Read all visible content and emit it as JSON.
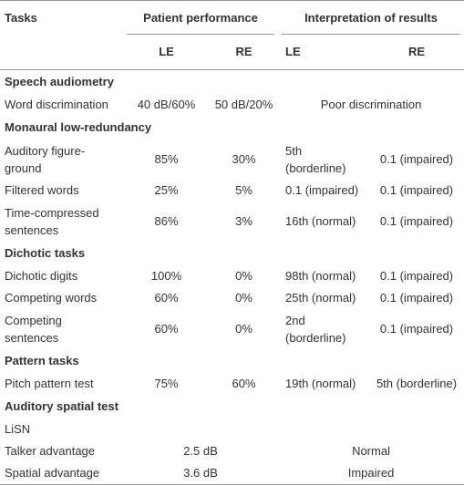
{
  "header": {
    "tasks": "Tasks",
    "patient_performance": "Patient performance",
    "interpretation": "Interpretation of results",
    "subheaders": [
      "LE",
      "RE",
      "LE",
      "RE"
    ]
  },
  "sections": [
    {
      "title": "Speech audiometry",
      "rows": [
        {
          "task": "Word discrimination",
          "patient_le": "40 dB/60%",
          "patient_re": "50 dB/20%",
          "interp": "Poor discrimination"
        }
      ]
    },
    {
      "title": "Monaural low-redundancy",
      "rows": [
        {
          "task": "Auditory figure-ground",
          "patient_le": "85%",
          "patient_re": "30%",
          "interp_le": "5th (borderline)",
          "interp_re": "0.1 (impaired)"
        },
        {
          "task": "Filtered words",
          "patient_le": "25%",
          "patient_re": "5%",
          "interp_le": "0.1 (impaired)",
          "interp_re": "0.1 (impaired)"
        },
        {
          "task": "Time-compressed sentences",
          "patient_le": "86%",
          "patient_re": "3%",
          "interp_le": "16th (normal)",
          "interp_re": "0.1 (impaired)"
        }
      ]
    },
    {
      "title": "Dichotic tasks",
      "rows": [
        {
          "task": "Dichotic digits",
          "patient_le": "100%",
          "patient_re": "0%",
          "interp_le": "98th (normal)",
          "interp_re": "0.1 (impaired)"
        },
        {
          "task": "Competing words",
          "patient_le": "60%",
          "patient_re": "0%",
          "interp_le": "25th (normal)",
          "interp_re": "0.1 (impaired)"
        },
        {
          "task": "Competing sentences",
          "patient_le": "60%",
          "patient_re": "0%",
          "interp_le": "2nd (borderline)",
          "interp_re": "0.1 (impaired)"
        }
      ]
    },
    {
      "title": "Pattern tasks",
      "rows": [
        {
          "task": "Pitch pattern test",
          "patient_le": "75%",
          "patient_re": "60%",
          "interp_le": "19th (normal)",
          "interp_re": "5th (borderline)"
        }
      ]
    },
    {
      "title": "Auditory spatial test",
      "rows": [
        {
          "task": "LiSN"
        },
        {
          "task": "Talker advantage",
          "patient": "2.5 dB",
          "interp": "Normal"
        },
        {
          "task": "Spatial advantage",
          "patient": "3.6 dB",
          "interp": "Impaired"
        }
      ]
    }
  ]
}
